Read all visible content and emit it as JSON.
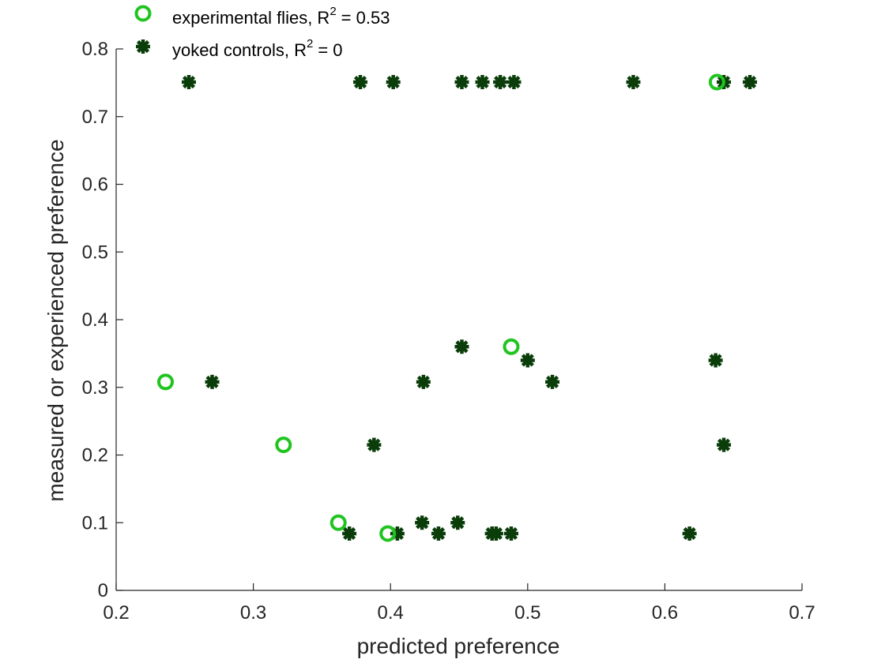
{
  "chart_data": {
    "type": "scatter",
    "title": "",
    "xlabel": "predicted preference",
    "ylabel": "measured or experienced preference",
    "xlim": [
      0.2,
      0.7
    ],
    "ylim": [
      0,
      0.8
    ],
    "xticks": [
      "0.2",
      "0.3",
      "0.4",
      "0.5",
      "0.6",
      "0.7"
    ],
    "yticks": [
      "0",
      "0.1",
      "0.2",
      "0.3",
      "0.4",
      "0.5",
      "0.6",
      "0.7",
      "0.8"
    ],
    "grid": false,
    "legend_position": "top-left",
    "series": [
      {
        "name": "experimental flies, R",
        "r2_value": "= 0.53",
        "marker": "circle",
        "color": "#1fc41f",
        "points": [
          {
            "x": 0.236,
            "y": 0.308
          },
          {
            "x": 0.322,
            "y": 0.215
          },
          {
            "x": 0.362,
            "y": 0.1
          },
          {
            "x": 0.398,
            "y": 0.084
          },
          {
            "x": 0.488,
            "y": 0.36
          },
          {
            "x": 0.638,
            "y": 0.751
          }
        ]
      },
      {
        "name": "yoked controls, R",
        "r2_value": "= 0",
        "marker": "asterisk",
        "color": "#0a3d0a",
        "points": [
          {
            "x": 0.253,
            "y": 0.751
          },
          {
            "x": 0.378,
            "y": 0.751
          },
          {
            "x": 0.402,
            "y": 0.751
          },
          {
            "x": 0.452,
            "y": 0.751
          },
          {
            "x": 0.467,
            "y": 0.751
          },
          {
            "x": 0.48,
            "y": 0.751
          },
          {
            "x": 0.49,
            "y": 0.751
          },
          {
            "x": 0.577,
            "y": 0.751
          },
          {
            "x": 0.643,
            "y": 0.751
          },
          {
            "x": 0.662,
            "y": 0.751
          },
          {
            "x": 0.27,
            "y": 0.308
          },
          {
            "x": 0.388,
            "y": 0.215
          },
          {
            "x": 0.37,
            "y": 0.084
          },
          {
            "x": 0.405,
            "y": 0.084
          },
          {
            "x": 0.423,
            "y": 0.1
          },
          {
            "x": 0.424,
            "y": 0.308
          },
          {
            "x": 0.435,
            "y": 0.084
          },
          {
            "x": 0.449,
            "y": 0.1
          },
          {
            "x": 0.452,
            "y": 0.36
          },
          {
            "x": 0.474,
            "y": 0.084
          },
          {
            "x": 0.477,
            "y": 0.084
          },
          {
            "x": 0.488,
            "y": 0.084
          },
          {
            "x": 0.5,
            "y": 0.34
          },
          {
            "x": 0.518,
            "y": 0.308
          },
          {
            "x": 0.618,
            "y": 0.084
          },
          {
            "x": 0.637,
            "y": 0.34
          },
          {
            "x": 0.643,
            "y": 0.215
          }
        ]
      }
    ]
  }
}
